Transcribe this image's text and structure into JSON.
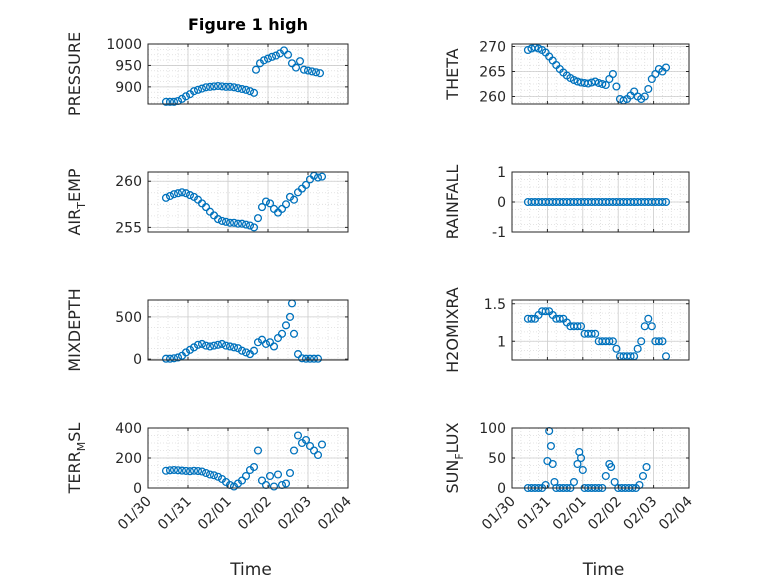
{
  "colors": {
    "marker": "#0072BD",
    "axis": "#262626",
    "grid": "#DCDCDC",
    "background": "#FFFFFF"
  },
  "chart_data": [
    {
      "type": "scatter",
      "title": "Figure 1 high",
      "ylabel": "PRESSURE",
      "xlabel": "",
      "x_tick_labels": [
        "01/30",
        "01/31",
        "02/01",
        "02/02",
        "02/03",
        "02/04"
      ],
      "xlim": [
        0,
        5
      ],
      "ylim": [
        860,
        1000
      ],
      "yticks": [
        900,
        950,
        1000
      ],
      "grid": true,
      "x": [
        0.45,
        0.55,
        0.65,
        0.75,
        0.85,
        0.95,
        1.05,
        1.15,
        1.25,
        1.35,
        1.45,
        1.55,
        1.65,
        1.75,
        1.85,
        1.95,
        2.05,
        2.15,
        2.25,
        2.35,
        2.45,
        2.55,
        2.65,
        2.7,
        2.8,
        2.9,
        3.0,
        3.1,
        3.2,
        3.3,
        3.4,
        3.5,
        3.6,
        3.7,
        3.8,
        3.9,
        4.0,
        4.1,
        4.2,
        4.3
      ],
      "y": [
        865,
        865,
        865,
        867,
        872,
        878,
        883,
        890,
        893,
        896,
        899,
        900,
        901,
        902,
        901,
        900,
        900,
        899,
        897,
        895,
        893,
        890,
        886,
        940,
        955,
        962,
        966,
        970,
        973,
        978,
        985,
        975,
        955,
        945,
        960,
        940,
        938,
        936,
        934,
        932
      ]
    },
    {
      "type": "scatter",
      "title": "",
      "ylabel": "THETA",
      "xlabel": "",
      "x_tick_labels": [
        "01/30",
        "01/31",
        "02/01",
        "02/02",
        "02/03",
        "02/04"
      ],
      "xlim": [
        0,
        5
      ],
      "ylim": [
        258.5,
        270.5
      ],
      "yticks": [
        260,
        265,
        270
      ],
      "grid": true,
      "x": [
        0.45,
        0.55,
        0.65,
        0.75,
        0.85,
        0.95,
        1.05,
        1.15,
        1.25,
        1.35,
        1.45,
        1.55,
        1.65,
        1.75,
        1.85,
        1.95,
        2.05,
        2.15,
        2.25,
        2.35,
        2.45,
        2.55,
        2.65,
        2.75,
        2.85,
        2.95,
        3.05,
        3.15,
        3.25,
        3.35,
        3.45,
        3.55,
        3.65,
        3.75,
        3.85,
        3.95,
        4.05,
        4.15,
        4.25,
        4.35
      ],
      "y": [
        269.3,
        269.6,
        269.8,
        269.6,
        269.3,
        268.8,
        268.0,
        267.2,
        266.3,
        265.5,
        264.8,
        264.2,
        263.7,
        263.3,
        263.0,
        262.8,
        262.7,
        262.6,
        262.8,
        263.0,
        262.7,
        262.5,
        262.3,
        263.5,
        264.5,
        262.0,
        259.5,
        259.2,
        259.5,
        260.2,
        261.0,
        260.0,
        259.5,
        260.0,
        261.5,
        263.5,
        264.5,
        265.5,
        265.0,
        265.8
      ]
    },
    {
      "type": "scatter",
      "title": "",
      "ylabel": "AIR_TEMP",
      "ylabel_main": "AIR",
      "ylabel_sub": "T",
      "ylabel_rest": "EMP",
      "xlabel": "",
      "x_tick_labels": [
        "01/30",
        "01/31",
        "02/01",
        "02/02",
        "02/03",
        "02/04"
      ],
      "xlim": [
        0,
        5
      ],
      "ylim": [
        254.5,
        261
      ],
      "yticks": [
        255,
        260
      ],
      "grid": true,
      "x": [
        0.45,
        0.55,
        0.65,
        0.75,
        0.85,
        0.95,
        1.05,
        1.15,
        1.25,
        1.35,
        1.45,
        1.55,
        1.65,
        1.75,
        1.85,
        1.95,
        2.05,
        2.15,
        2.25,
        2.35,
        2.45,
        2.55,
        2.65,
        2.75,
        2.85,
        2.95,
        3.05,
        3.15,
        3.25,
        3.35,
        3.45,
        3.55,
        3.65,
        3.75,
        3.85,
        3.95,
        4.05,
        4.15,
        4.25,
        4.35
      ],
      "y": [
        258.2,
        258.4,
        258.6,
        258.7,
        258.8,
        258.7,
        258.5,
        258.3,
        258.0,
        257.6,
        257.2,
        256.7,
        256.3,
        255.9,
        255.7,
        255.6,
        255.5,
        255.5,
        255.4,
        255.4,
        255.3,
        255.2,
        255.0,
        256.0,
        257.2,
        257.8,
        257.6,
        257.0,
        256.6,
        257.0,
        257.5,
        258.3,
        258.0,
        258.8,
        259.2,
        259.6,
        260.2,
        260.6,
        260.4,
        260.5
      ]
    },
    {
      "type": "scatter",
      "title": "",
      "ylabel": "RAINFALL",
      "xlabel": "",
      "x_tick_labels": [
        "01/30",
        "01/31",
        "02/01",
        "02/02",
        "02/03",
        "02/04"
      ],
      "xlim": [
        0,
        5
      ],
      "ylim": [
        -1,
        1
      ],
      "yticks": [
        -1,
        0,
        1
      ],
      "grid": true,
      "x": [
        0.45,
        0.55,
        0.65,
        0.75,
        0.85,
        0.95,
        1.05,
        1.15,
        1.25,
        1.35,
        1.45,
        1.55,
        1.65,
        1.75,
        1.85,
        1.95,
        2.05,
        2.15,
        2.25,
        2.35,
        2.45,
        2.55,
        2.65,
        2.75,
        2.85,
        2.95,
        3.05,
        3.15,
        3.25,
        3.35,
        3.45,
        3.55,
        3.65,
        3.75,
        3.85,
        3.95,
        4.05,
        4.15,
        4.25,
        4.35
      ],
      "y": [
        0,
        0,
        0,
        0,
        0,
        0,
        0,
        0,
        0,
        0,
        0,
        0,
        0,
        0,
        0,
        0,
        0,
        0,
        0,
        0,
        0,
        0,
        0,
        0,
        0,
        0,
        0,
        0,
        0,
        0,
        0,
        0,
        0,
        0,
        0,
        0,
        0,
        0,
        0,
        0
      ]
    },
    {
      "type": "scatter",
      "title": "",
      "ylabel": "MIXDEPTH",
      "xlabel": "",
      "x_tick_labels": [
        "01/30",
        "01/31",
        "02/01",
        "02/02",
        "02/03",
        "02/04"
      ],
      "xlim": [
        0,
        5
      ],
      "ylim": [
        -10,
        700
      ],
      "yticks": [
        0,
        500
      ],
      "grid": true,
      "x": [
        0.45,
        0.55,
        0.65,
        0.75,
        0.85,
        0.95,
        1.05,
        1.15,
        1.25,
        1.35,
        1.45,
        1.55,
        1.65,
        1.75,
        1.85,
        1.95,
        2.05,
        2.15,
        2.25,
        2.35,
        2.45,
        2.55,
        2.65,
        2.75,
        2.85,
        2.95,
        3.05,
        3.15,
        3.25,
        3.35,
        3.45,
        3.55,
        3.6,
        3.65,
        3.75,
        3.85,
        3.95,
        4.05,
        4.15,
        4.25
      ],
      "y": [
        5,
        5,
        10,
        20,
        40,
        80,
        110,
        140,
        170,
        180,
        160,
        150,
        160,
        170,
        180,
        160,
        150,
        140,
        130,
        100,
        80,
        60,
        100,
        200,
        230,
        180,
        200,
        150,
        250,
        300,
        400,
        500,
        660,
        300,
        60,
        10,
        5,
        5,
        5,
        5
      ]
    },
    {
      "type": "scatter",
      "title": "",
      "ylabel": "H2OMIXRA",
      "xlabel": "",
      "x_tick_labels": [
        "01/30",
        "01/31",
        "02/01",
        "02/02",
        "02/03",
        "02/04"
      ],
      "xlim": [
        0,
        5
      ],
      "ylim": [
        0.75,
        1.55
      ],
      "yticks": [
        1,
        1.5
      ],
      "grid": true,
      "x": [
        0.45,
        0.55,
        0.65,
        0.75,
        0.85,
        0.95,
        1.05,
        1.15,
        1.25,
        1.35,
        1.45,
        1.55,
        1.65,
        1.75,
        1.85,
        1.95,
        2.05,
        2.15,
        2.25,
        2.35,
        2.45,
        2.55,
        2.65,
        2.75,
        2.85,
        2.95,
        3.05,
        3.15,
        3.25,
        3.35,
        3.45,
        3.55,
        3.65,
        3.75,
        3.85,
        3.95,
        4.05,
        4.15,
        4.25,
        4.35
      ],
      "y": [
        1.3,
        1.3,
        1.3,
        1.35,
        1.4,
        1.4,
        1.4,
        1.35,
        1.3,
        1.3,
        1.3,
        1.25,
        1.2,
        1.2,
        1.2,
        1.2,
        1.1,
        1.1,
        1.1,
        1.1,
        1.0,
        1.0,
        1.0,
        1.0,
        1.0,
        0.9,
        0.8,
        0.8,
        0.8,
        0.8,
        0.8,
        0.9,
        1.0,
        1.2,
        1.3,
        1.2,
        1.0,
        1.0,
        1.0,
        0.8
      ]
    },
    {
      "type": "scatter",
      "title": "",
      "ylabel": "TERR_MSL",
      "ylabel_main": "TERR",
      "ylabel_sub": "M",
      "ylabel_rest": "SL",
      "xlabel": "Time",
      "x_tick_labels": [
        "01/30",
        "01/31",
        "02/01",
        "02/02",
        "02/03",
        "02/04"
      ],
      "xlim": [
        0,
        5
      ],
      "ylim": [
        0,
        400
      ],
      "yticks": [
        0,
        200,
        400
      ],
      "grid": true,
      "x": [
        0.45,
        0.55,
        0.65,
        0.75,
        0.85,
        0.95,
        1.05,
        1.15,
        1.25,
        1.35,
        1.45,
        1.55,
        1.65,
        1.75,
        1.85,
        1.95,
        2.05,
        2.15,
        2.25,
        2.35,
        2.45,
        2.55,
        2.65,
        2.75,
        2.85,
        2.95,
        3.05,
        3.15,
        3.25,
        3.35,
        3.45,
        3.55,
        3.65,
        3.75,
        3.85,
        3.95,
        4.05,
        4.15,
        4.25,
        4.35
      ],
      "y": [
        115,
        118,
        120,
        118,
        116,
        114,
        112,
        115,
        113,
        110,
        100,
        90,
        85,
        75,
        60,
        40,
        20,
        10,
        30,
        50,
        80,
        120,
        140,
        250,
        50,
        20,
        80,
        10,
        90,
        20,
        30,
        100,
        250,
        350,
        300,
        320,
        280,
        250,
        220,
        290
      ]
    },
    {
      "type": "scatter",
      "title": "",
      "ylabel": "SUN_FLUX",
      "ylabel_main": "SUN",
      "ylabel_sub": "F",
      "ylabel_rest": "LUX",
      "xlabel": "Time",
      "x_tick_labels": [
        "01/30",
        "01/31",
        "02/01",
        "02/02",
        "02/03",
        "02/04"
      ],
      "xlim": [
        0,
        5
      ],
      "ylim": [
        0,
        100
      ],
      "yticks": [
        0,
        50,
        100
      ],
      "grid": true,
      "x": [
        0.45,
        0.55,
        0.65,
        0.75,
        0.85,
        0.95,
        1.0,
        1.05,
        1.1,
        1.15,
        1.2,
        1.25,
        1.35,
        1.45,
        1.55,
        1.65,
        1.75,
        1.85,
        1.9,
        1.95,
        2.0,
        2.05,
        2.15,
        2.25,
        2.35,
        2.45,
        2.55,
        2.65,
        2.75,
        2.8,
        2.9,
        3.0,
        3.1,
        3.2,
        3.3,
        3.4,
        3.5,
        3.6,
        3.7,
        3.8
      ],
      "y": [
        0,
        0,
        0,
        0,
        0,
        5,
        45,
        95,
        70,
        40,
        10,
        0,
        0,
        0,
        0,
        0,
        10,
        40,
        60,
        50,
        30,
        0,
        0,
        0,
        0,
        0,
        0,
        20,
        40,
        35,
        10,
        0,
        0,
        0,
        0,
        0,
        0,
        5,
        20,
        35
      ]
    }
  ]
}
